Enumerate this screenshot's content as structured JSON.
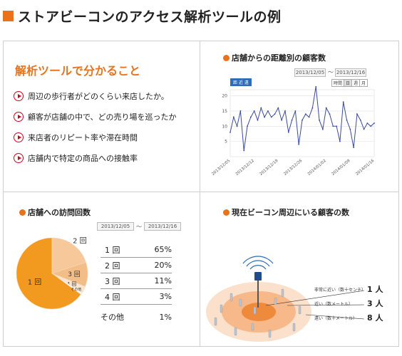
{
  "title": "ストアビーコンのアクセス解析ツールの例",
  "features": {
    "heading": "解析ツールで分かること",
    "items": [
      "周辺の歩行者がどのくらい来店したか。",
      "顧客が店舗の中で、どの売り場を巡ったか",
      "来店者のリピート率や滞在時間",
      "店舗内で特定の商品への接触率"
    ]
  },
  "distance_panel": {
    "heading": "店舗からの距離別の顧客数",
    "date_from": "2013/12/05",
    "date_to": "2013/12/16",
    "tilde": "〜",
    "legend": "距 近 遠",
    "segments": [
      "時間",
      "日",
      "週",
      "月"
    ]
  },
  "visits_panel": {
    "heading": "店舗への訪問回数",
    "date_from": "2013/12/05",
    "date_to": "2013/12/16",
    "tilde": "〜",
    "rows": [
      {
        "label": "1 回",
        "pct": "65%"
      },
      {
        "label": "2 回",
        "pct": "20%"
      },
      {
        "label": "3 回",
        "pct": "11%"
      },
      {
        "label": "4 回",
        "pct": "3%"
      },
      {
        "label": "その他",
        "pct": "1%"
      }
    ],
    "pie_labels": [
      "1 回",
      "2 回",
      "3 回",
      "4 回",
      "その他"
    ]
  },
  "beacon_panel": {
    "heading": "現在ビーコン周辺にいる顧客の数",
    "ranges": [
      {
        "label": "非常に近い（数十センチ）",
        "count": "1 人"
      },
      {
        "label": "近い（数メートル）",
        "count": "3 人"
      },
      {
        "label": "遠い（数十メートル）",
        "count": "8 人"
      }
    ]
  },
  "colors": {
    "accent": "#e8731c",
    "line": "#3a4aa0",
    "pie_1": "#f29a1f",
    "pie_2": "#f7c99a",
    "pie_3": "#f3bd88",
    "pie_4": "#fbe6d2",
    "pie_other": "#ffffff"
  },
  "chart_data": [
    {
      "type": "line",
      "x": [
        "2013/12/05",
        "2013/12/06",
        "2013/12/07",
        "2013/12/08",
        "2013/12/09",
        "2013/12/10",
        "2013/12/11",
        "2013/12/12",
        "2013/12/13",
        "2013/12/14",
        "2013/12/15",
        "2013/12/16",
        "2013/12/17",
        "2013/12/18",
        "2013/12/19",
        "2013/12/20",
        "2013/12/21",
        "2013/12/22",
        "2013/12/23",
        "2013/12/24",
        "2013/12/25",
        "2013/12/26",
        "2013/12/27",
        "2013/12/28",
        "2013/12/29",
        "2013/12/30",
        "2013/12/31",
        "2014/01/01",
        "2014/01/02",
        "2014/01/03",
        "2014/01/04",
        "2014/01/05",
        "2014/01/06",
        "2014/01/07",
        "2014/01/08",
        "2014/01/09",
        "2014/01/10",
        "2014/01/11",
        "2014/01/12",
        "2014/01/13",
        "2014/01/14",
        "2014/01/15",
        "2014/01/16"
      ],
      "series": [
        {
          "values": [
            8,
            13,
            10,
            15,
            2,
            10,
            13,
            15,
            12,
            16,
            13,
            15,
            13,
            14,
            16,
            12,
            15,
            8,
            12,
            15,
            4,
            12,
            14,
            13,
            16,
            23,
            12,
            9,
            16,
            14,
            10,
            10,
            5,
            18,
            12,
            9,
            3,
            14,
            12,
            9,
            11,
            10,
            11
          ]
        }
      ],
      "x_tick_labels": [
        "2013/12/05",
        "2013/12/12",
        "2013/12/19",
        "2013/12/26",
        "2014/01/02",
        "2014/01/09",
        "2014/01/16"
      ],
      "y_ticks": [
        5,
        10,
        15,
        20
      ],
      "ylim": [
        0,
        22
      ],
      "grid": true
    },
    {
      "type": "pie",
      "categories": [
        "1 回",
        "2 回",
        "3 回",
        "4 回",
        "その他"
      ],
      "values": [
        65,
        20,
        11,
        3,
        1
      ]
    }
  ]
}
